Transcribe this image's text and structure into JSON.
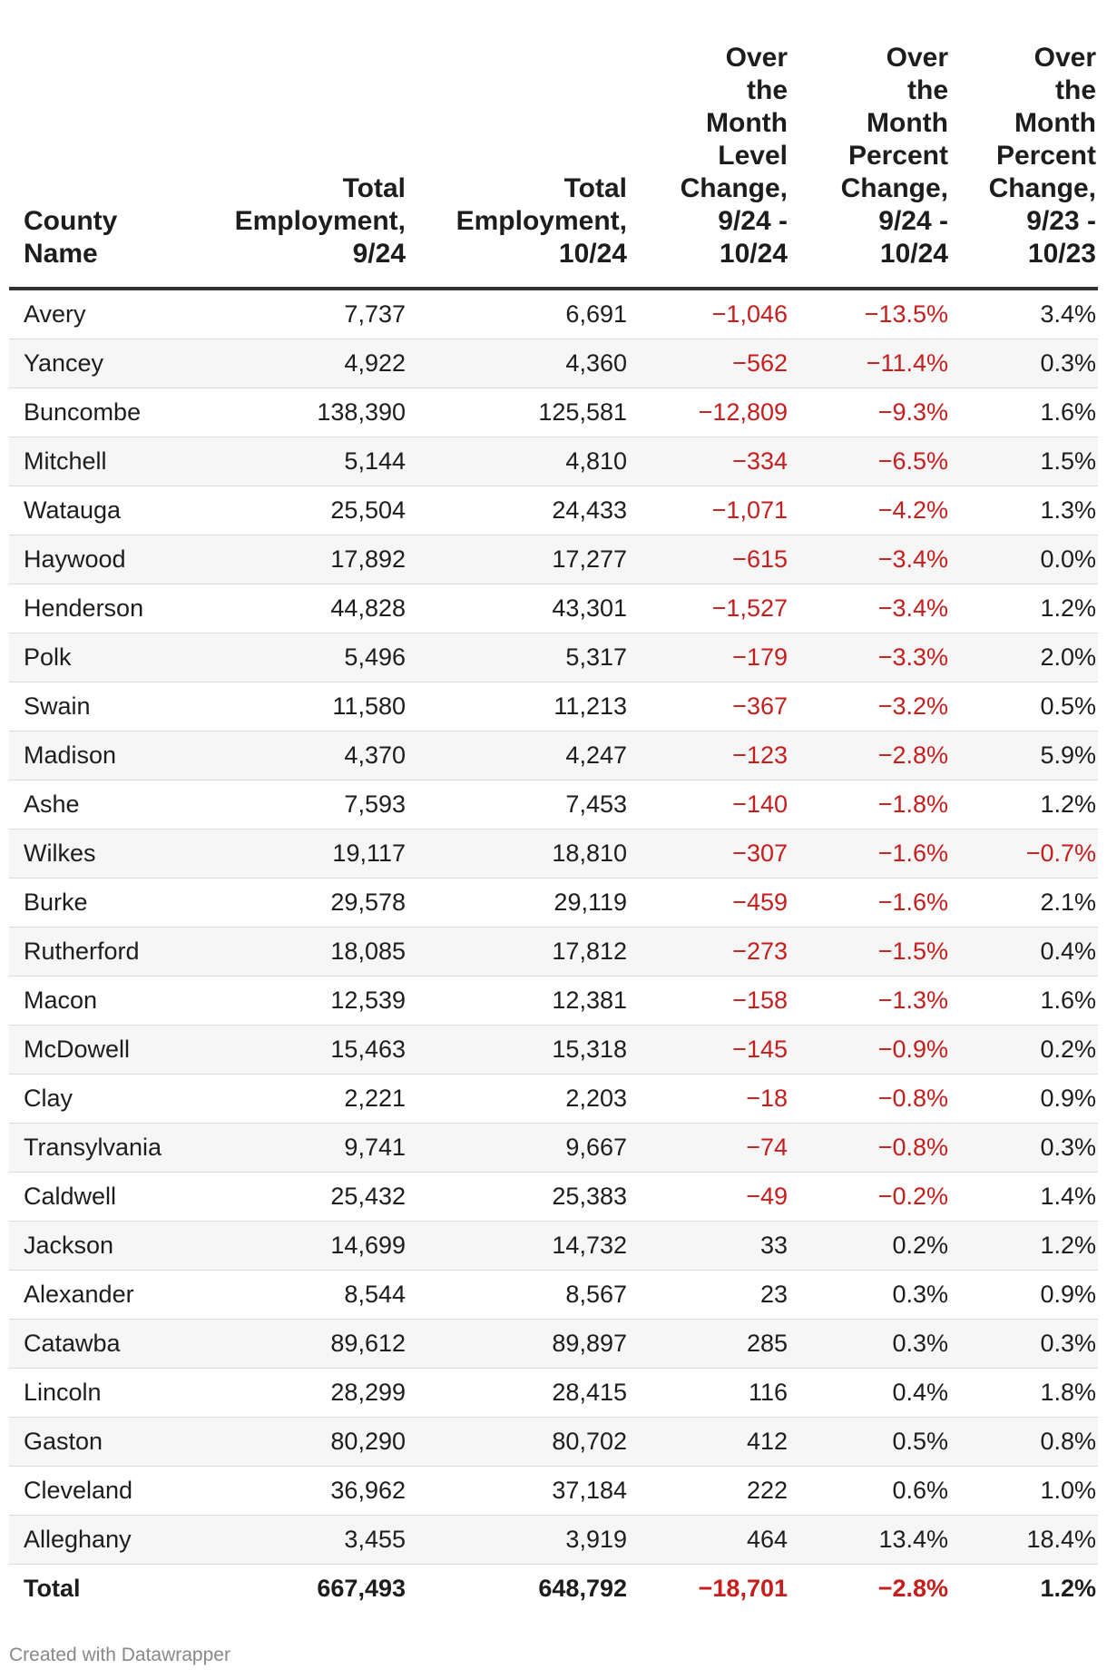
{
  "chart_data": {
    "type": "table",
    "columns": [
      "County Name",
      "Total Employment, 9/24",
      "Total Employment, 10/24",
      "Over the Month Level Change, 9/24 - 10/24",
      "Over the Month Percent Change, 9/24 - 10/24",
      "Over the Month Percent Change, 9/23 - 10/23"
    ],
    "rows": [
      [
        "Avery",
        "7,737",
        "6,691",
        "−1,046",
        "−13.5%",
        "3.4%"
      ],
      [
        "Yancey",
        "4,922",
        "4,360",
        "−562",
        "−11.4%",
        "0.3%"
      ],
      [
        "Buncombe",
        "138,390",
        "125,581",
        "−12,809",
        "−9.3%",
        "1.6%"
      ],
      [
        "Mitchell",
        "5,144",
        "4,810",
        "−334",
        "−6.5%",
        "1.5%"
      ],
      [
        "Watauga",
        "25,504",
        "24,433",
        "−1,071",
        "−4.2%",
        "1.3%"
      ],
      [
        "Haywood",
        "17,892",
        "17,277",
        "−615",
        "−3.4%",
        "0.0%"
      ],
      [
        "Henderson",
        "44,828",
        "43,301",
        "−1,527",
        "−3.4%",
        "1.2%"
      ],
      [
        "Polk",
        "5,496",
        "5,317",
        "−179",
        "−3.3%",
        "2.0%"
      ],
      [
        "Swain",
        "11,580",
        "11,213",
        "−367",
        "−3.2%",
        "0.5%"
      ],
      [
        "Madison",
        "4,370",
        "4,247",
        "−123",
        "−2.8%",
        "5.9%"
      ],
      [
        "Ashe",
        "7,593",
        "7,453",
        "−140",
        "−1.8%",
        "1.2%"
      ],
      [
        "Wilkes",
        "19,117",
        "18,810",
        "−307",
        "−1.6%",
        "−0.7%"
      ],
      [
        "Burke",
        "29,578",
        "29,119",
        "−459",
        "−1.6%",
        "2.1%"
      ],
      [
        "Rutherford",
        "18,085",
        "17,812",
        "−273",
        "−1.5%",
        "0.4%"
      ],
      [
        "Macon",
        "12,539",
        "12,381",
        "−158",
        "−1.3%",
        "1.6%"
      ],
      [
        "McDowell",
        "15,463",
        "15,318",
        "−145",
        "−0.9%",
        "0.2%"
      ],
      [
        "Clay",
        "2,221",
        "2,203",
        "−18",
        "−0.8%",
        "0.9%"
      ],
      [
        "Transylvania",
        "9,741",
        "9,667",
        "−74",
        "−0.8%",
        "0.3%"
      ],
      [
        "Caldwell",
        "25,432",
        "25,383",
        "−49",
        "−0.2%",
        "1.4%"
      ],
      [
        "Jackson",
        "14,699",
        "14,732",
        "33",
        "0.2%",
        "1.2%"
      ],
      [
        "Alexander",
        "8,544",
        "8,567",
        "23",
        "0.3%",
        "0.9%"
      ],
      [
        "Catawba",
        "89,612",
        "89,897",
        "285",
        "0.3%",
        "0.3%"
      ],
      [
        "Lincoln",
        "28,299",
        "28,415",
        "116",
        "0.4%",
        "1.8%"
      ],
      [
        "Gaston",
        "80,290",
        "80,702",
        "412",
        "0.5%",
        "0.8%"
      ],
      [
        "Cleveland",
        "36,962",
        "37,184",
        "222",
        "0.6%",
        "1.0%"
      ],
      [
        "Alleghany",
        "3,455",
        "3,919",
        "464",
        "13.4%",
        "18.4%"
      ]
    ],
    "total_row": [
      "Total",
      "667,493",
      "648,792",
      "−18,701",
      "−2.8%",
      "1.2%"
    ],
    "negative_color": "#c71e1d"
  },
  "header_lines": [
    [
      "County",
      "Name"
    ],
    [
      "Total",
      "Employment,",
      "9/24"
    ],
    [
      "Total",
      "Employment,",
      "10/24"
    ],
    [
      "Over",
      "the",
      "Month",
      "Level",
      "Change,",
      "9/24 -",
      "10/24"
    ],
    [
      "Over",
      "the",
      "Month",
      "Percent",
      "Change,",
      "9/24 -",
      "10/24"
    ],
    [
      "Over",
      "the",
      "Month",
      "Percent",
      "Change,",
      "9/23 -",
      "10/23"
    ]
  ],
  "footer": {
    "credit": "Created with Datawrapper"
  }
}
